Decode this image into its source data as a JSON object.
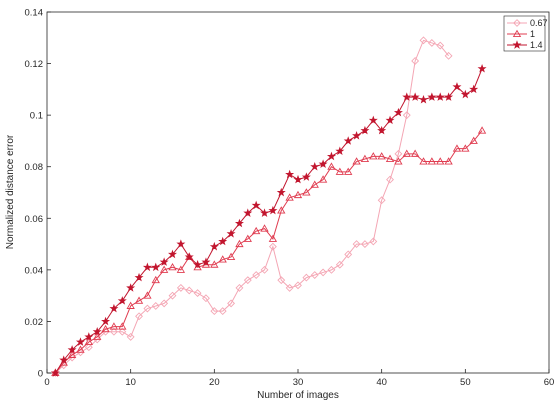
{
  "chart_data": {
    "type": "line",
    "title": "",
    "xlabel": "Number of images",
    "ylabel": "Normalized distance error",
    "xlim": [
      0,
      60
    ],
    "ylim": [
      0,
      0.14
    ],
    "xticks": [
      0,
      10,
      20,
      30,
      40,
      50,
      60
    ],
    "xtick_labels": [
      "0",
      "10",
      "20",
      "30",
      "40",
      "50",
      "60"
    ],
    "yticks": [
      0,
      0.02,
      0.04,
      0.06,
      0.08,
      0.1,
      0.12,
      0.14
    ],
    "ytick_labels": [
      "0",
      "0.02",
      "0.04",
      "0.06",
      "0.08",
      "0.1",
      "0.12",
      "0.14"
    ],
    "grid": false,
    "legend_position": "top-right",
    "series": [
      {
        "name": "0.67",
        "color": "#f4a6b4",
        "marker": "diamond",
        "x": [
          1,
          2,
          3,
          4,
          5,
          6,
          7,
          8,
          9,
          10,
          11,
          12,
          13,
          14,
          15,
          16,
          17,
          18,
          19,
          20,
          21,
          22,
          23,
          24,
          25,
          26,
          27,
          28,
          29,
          30,
          31,
          32,
          33,
          34,
          35,
          36,
          37,
          38,
          39,
          40,
          41,
          42,
          43,
          44,
          45,
          46,
          47,
          48
        ],
        "y": [
          0,
          0.003,
          0.006,
          0.008,
          0.01,
          0.013,
          0.016,
          0.016,
          0.016,
          0.014,
          0.022,
          0.025,
          0.026,
          0.027,
          0.03,
          0.033,
          0.032,
          0.031,
          0.029,
          0.024,
          0.024,
          0.027,
          0.033,
          0.036,
          0.038,
          0.04,
          0.049,
          0.036,
          0.033,
          0.034,
          0.037,
          0.038,
          0.039,
          0.04,
          0.042,
          0.046,
          0.05,
          0.05,
          0.051,
          0.067,
          0.075,
          0.085,
          0.1,
          0.121,
          0.129,
          0.128,
          0.127,
          0.123
        ]
      },
      {
        "name": "1",
        "color": "#e03c50",
        "marker": "triangle",
        "x": [
          1,
          2,
          3,
          4,
          5,
          6,
          7,
          8,
          9,
          10,
          11,
          12,
          13,
          14,
          15,
          16,
          17,
          18,
          19,
          20,
          21,
          22,
          23,
          24,
          25,
          26,
          27,
          28,
          29,
          30,
          31,
          32,
          33,
          34,
          35,
          36,
          37,
          38,
          39,
          40,
          41,
          42,
          43,
          44,
          45,
          46,
          47,
          48,
          49,
          50,
          51,
          52
        ],
        "y": [
          0,
          0.004,
          0.007,
          0.009,
          0.012,
          0.014,
          0.017,
          0.018,
          0.018,
          0.026,
          0.028,
          0.03,
          0.036,
          0.04,
          0.041,
          0.04,
          0.045,
          0.041,
          0.042,
          0.042,
          0.044,
          0.045,
          0.05,
          0.052,
          0.055,
          0.056,
          0.052,
          0.063,
          0.068,
          0.069,
          0.07,
          0.073,
          0.075,
          0.08,
          0.078,
          0.078,
          0.082,
          0.083,
          0.084,
          0.084,
          0.083,
          0.082,
          0.085,
          0.085,
          0.082,
          0.082,
          0.082,
          0.082,
          0.087,
          0.087,
          0.09,
          0.094
        ]
      },
      {
        "name": "1.4",
        "color": "#c2162f",
        "marker": "star",
        "x": [
          1,
          2,
          3,
          4,
          5,
          6,
          7,
          8,
          9,
          10,
          11,
          12,
          13,
          14,
          15,
          16,
          17,
          18,
          19,
          20,
          21,
          22,
          23,
          24,
          25,
          26,
          27,
          28,
          29,
          30,
          31,
          32,
          33,
          34,
          35,
          36,
          37,
          38,
          39,
          40,
          41,
          42,
          43,
          44,
          45,
          46,
          47,
          48,
          49,
          50,
          51,
          52
        ],
        "y": [
          0,
          0.005,
          0.009,
          0.012,
          0.014,
          0.016,
          0.02,
          0.025,
          0.028,
          0.033,
          0.037,
          0.041,
          0.041,
          0.043,
          0.046,
          0.05,
          0.045,
          0.042,
          0.043,
          0.049,
          0.051,
          0.054,
          0.058,
          0.062,
          0.065,
          0.062,
          0.063,
          0.07,
          0.077,
          0.075,
          0.076,
          0.08,
          0.081,
          0.084,
          0.086,
          0.09,
          0.092,
          0.094,
          0.098,
          0.094,
          0.098,
          0.101,
          0.107,
          0.107,
          0.106,
          0.107,
          0.107,
          0.107,
          0.111,
          0.108,
          0.11,
          0.118
        ]
      }
    ]
  }
}
